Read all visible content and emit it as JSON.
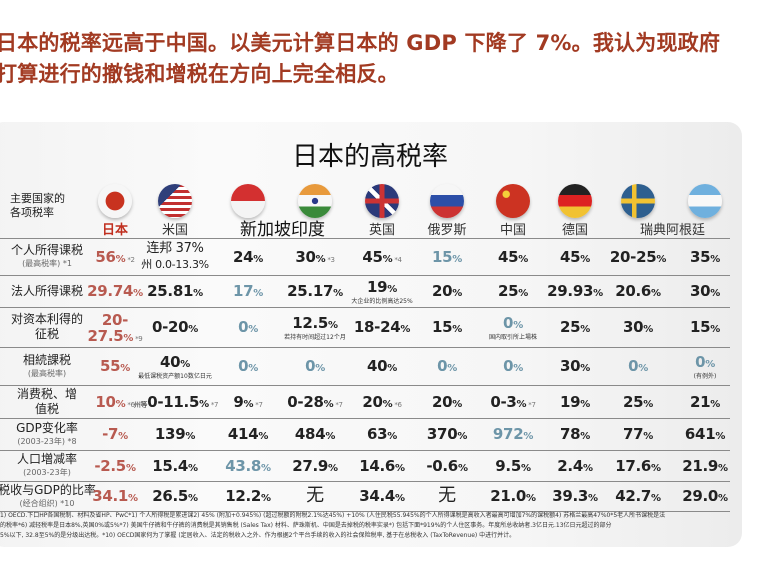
{
  "headline": {
    "line1": "日本的税率远高于中国。以美元计算日本的 GDP 下降了 7%。我认为现政府",
    "line2": "打算进行的撤钱和增税在方向上完全相反。"
  },
  "table": {
    "title": "日本的高税率",
    "corner_label_1": "主要国家的",
    "corner_label_2": "各项税率",
    "countries": [
      {
        "name": "日本",
        "flag": "japan-flag-icon"
      },
      {
        "name": "米国",
        "flag": "usa-flag-icon"
      },
      {
        "name": "",
        "flag": "singapore-flag-icon"
      },
      {
        "name": "",
        "flag": "india-flag-icon"
      },
      {
        "name": "英国",
        "flag": "uk-flag-icon"
      },
      {
        "name": "俄罗斯",
        "flag": "russia-flag-icon"
      },
      {
        "name": "中国",
        "flag": "china-flag-icon"
      },
      {
        "name": "德国",
        "flag": "germany-flag-icon"
      },
      {
        "name": "",
        "flag": "sweden-flag-icon"
      },
      {
        "name": "",
        "flag": "argentina-flag-icon"
      }
    ],
    "merged_name_sg_in": "新加坡印度",
    "merged_name_se_ar": "瑞典阿根廷",
    "colors": {
      "japan": "#b85a50",
      "highlight": "#6d95a8",
      "headline": "#a23a22"
    },
    "rows": [
      {
        "label": "个人所得课税",
        "sub": "(最高税率) *1",
        "cells": [
          {
            "v": "56",
            "pct": true,
            "note": "*2",
            "tone": "red"
          },
          {
            "v": "连邦 37%",
            "pct": false,
            "sub2": "州 0.0-13.3%"
          },
          {
            "v": "24",
            "pct": true
          },
          {
            "v": "30",
            "pct": true,
            "note": "*3"
          },
          {
            "v": "45",
            "pct": true,
            "note": "*4"
          },
          {
            "v": "15",
            "pct": true,
            "tone": "blue"
          },
          {
            "v": "45",
            "pct": true
          },
          {
            "v": "45",
            "pct": true
          },
          {
            "v": "20-25",
            "pct": true
          },
          {
            "v": "35",
            "pct": true
          }
        ]
      },
      {
        "label": "法人所得课税",
        "sub": "",
        "cells": [
          {
            "v": "29.74",
            "pct": true,
            "tone": "red"
          },
          {
            "v": "25.81",
            "pct": true
          },
          {
            "v": "17",
            "pct": true,
            "tone": "blue"
          },
          {
            "v": "25.17",
            "pct": true
          },
          {
            "v": "19",
            "pct": true,
            "sub": "大企业的比例高达25%"
          },
          {
            "v": "20",
            "pct": true
          },
          {
            "v": "25",
            "pct": true
          },
          {
            "v": "29.93",
            "pct": true
          },
          {
            "v": "20.6",
            "pct": true
          },
          {
            "v": "30",
            "pct": true
          }
        ]
      },
      {
        "label": "对资本利得的",
        "label2": "征税",
        "sub": "",
        "cells": [
          {
            "v": "20-",
            "pct": false,
            "v2": "27.5",
            "note": "*9",
            "tone": "red"
          },
          {
            "v": "0-20",
            "pct": true
          },
          {
            "v": "0",
            "pct": true,
            "tone": "blue"
          },
          {
            "v": "12.5",
            "pct": true,
            "sub": "若持有时间超过12个月"
          },
          {
            "v": "18-24",
            "pct": true
          },
          {
            "v": "15",
            "pct": true
          },
          {
            "v": "0",
            "pct": true,
            "tone": "blue",
            "sub": "国内取引所上場株"
          },
          {
            "v": "25",
            "pct": true
          },
          {
            "v": "30",
            "pct": true
          },
          {
            "v": "15",
            "pct": true
          }
        ]
      },
      {
        "label": "相続課税",
        "sub": "(最高税率)",
        "cells": [
          {
            "v": "55",
            "pct": true,
            "tone": "red"
          },
          {
            "v": "40",
            "pct": true,
            "sub": "最低课税资产额10数亿日元"
          },
          {
            "v": "0",
            "pct": true,
            "tone": "blue"
          },
          {
            "v": "0",
            "pct": true,
            "tone": "blue"
          },
          {
            "v": "40",
            "pct": true
          },
          {
            "v": "0",
            "pct": true,
            "tone": "blue"
          },
          {
            "v": "0",
            "pct": true,
            "tone": "blue"
          },
          {
            "v": "30",
            "pct": true
          },
          {
            "v": "0",
            "pct": true,
            "tone": "blue"
          },
          {
            "v": "0",
            "pct": true,
            "tone": "blue",
            "sub": "(有例外)"
          }
        ]
      },
      {
        "label": "消费税、增",
        "label2": "值税",
        "sub": "",
        "cells": [
          {
            "v": "10",
            "pct": true,
            "note": "*6",
            "tone": "red"
          },
          {
            "v": "0-11.5",
            "pct": true,
            "prefix": "州等",
            "note": "*7"
          },
          {
            "v": "9",
            "pct": true,
            "note": "*7"
          },
          {
            "v": "0-28",
            "pct": true,
            "note": "*7"
          },
          {
            "v": "20",
            "pct": true,
            "note": "*6"
          },
          {
            "v": "20",
            "pct": true
          },
          {
            "v": "0-3",
            "pct": true,
            "note": "*7"
          },
          {
            "v": "19",
            "pct": true
          },
          {
            "v": "25",
            "pct": true
          },
          {
            "v": "21",
            "pct": true
          }
        ]
      },
      {
        "label": "GDP变化率",
        "sub": "(2003-23年) *8",
        "cells": [
          {
            "v": "-7",
            "pct": true,
            "tone": "red"
          },
          {
            "v": "139",
            "pct": true
          },
          {
            "v": "414",
            "pct": true
          },
          {
            "v": "484",
            "pct": true
          },
          {
            "v": "63",
            "pct": true
          },
          {
            "v": "370",
            "pct": true
          },
          {
            "v": "972",
            "pct": true,
            "tone": "blue"
          },
          {
            "v": "78",
            "pct": true
          },
          {
            "v": "77",
            "pct": true
          },
          {
            "v": "641",
            "pct": true
          }
        ]
      },
      {
        "label": "人口増减率",
        "sub": "(2003-23年)",
        "cells": [
          {
            "v": "-2.5",
            "pct": true,
            "tone": "red"
          },
          {
            "v": "15.4",
            "pct": true
          },
          {
            "v": "43.8",
            "pct": true,
            "tone": "blue"
          },
          {
            "v": "27.9",
            "pct": true
          },
          {
            "v": "14.6",
            "pct": true
          },
          {
            "v": "-0.6",
            "pct": true
          },
          {
            "v": "9.5",
            "pct": true
          },
          {
            "v": "2.4",
            "pct": true
          },
          {
            "v": "17.6",
            "pct": true
          },
          {
            "v": "21.9",
            "pct": true
          }
        ]
      },
      {
        "label": "税收与GDP的比率",
        "sub": "(经合组织) *10",
        "cells": [
          {
            "v": "34.1",
            "pct": true,
            "tone": "red"
          },
          {
            "v": "26.5",
            "pct": true
          },
          {
            "v": "12.2",
            "pct": true
          },
          {
            "v": "无",
            "pct": false,
            "big": true
          },
          {
            "v": "34.4",
            "pct": true
          },
          {
            "v": "无",
            "pct": false,
            "big": true
          },
          {
            "v": "21.0",
            "pct": true
          },
          {
            "v": "39.3",
            "pct": true
          },
          {
            "v": "42.7",
            "pct": true
          },
          {
            "v": "29.0",
            "pct": true
          }
        ]
      }
    ],
    "footnotes": [
      "1) OECD.下口HP各国税制、材料及省HP、PwC*1) 个人所得税是累进课2) 45% (附加+0.945%) (超过税额的附税2.1%达45%) +10% (人住民税55.945%的个人所得课税是高收入者最高可增加7%的课税额4) 苏格兰最高47%0*5老人所书课税是法",
      "的税率*6) 减轻税率是日本8%,英国0%或5%*7) 美国牛仔裤和牛仔裤的消费税是其销售税 (Sales Tax) 材料、萨珠斯机、中国是去掉税的税率实录*) 包括下面*919%的个人住区事务。年度所总收纳者.3亿日元.13亿日元超过的部分",
      "5%以下, 32.8至5%的是分级出达税。*10) OECD国家何为了掌握 (定居收入、法定的税收入之外、作为根据2个平台手续的收入的社会保险税率, 基于在总税收入 (TaxToRevenue) 中进行并计。"
    ]
  }
}
